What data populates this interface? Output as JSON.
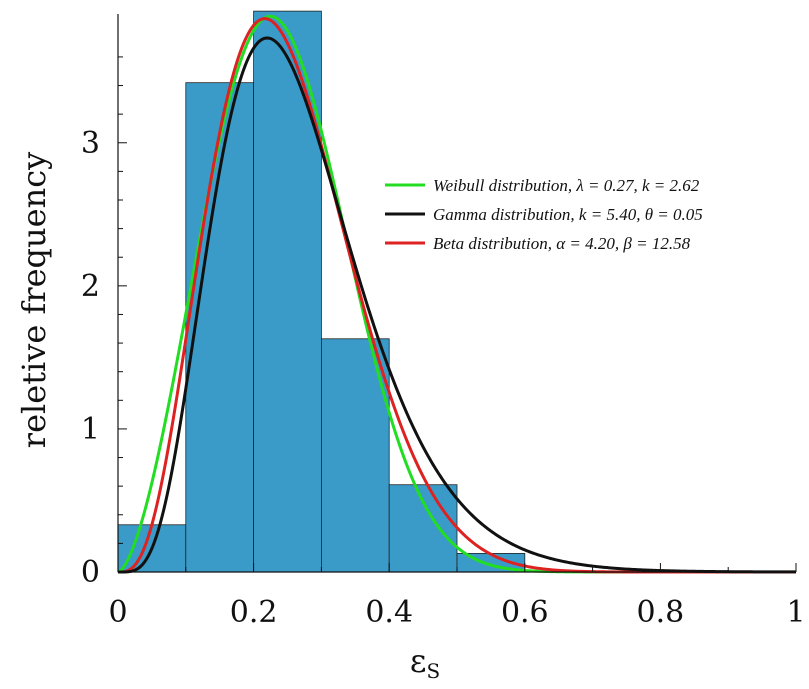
{
  "chart_data": {
    "type": "bar",
    "title": "",
    "xlabel": "ε",
    "xlabel_subscript": "S",
    "ylabel": "reletive frequency",
    "xlim": [
      0,
      1
    ],
    "ylim": [
      0,
      3.9
    ],
    "grid": false,
    "legend_position": "right",
    "x_ticks": [
      {
        "value": 0,
        "label": "0"
      },
      {
        "value": 0.2,
        "label": "0.2"
      },
      {
        "value": 0.4,
        "label": "0.4"
      },
      {
        "value": 0.6,
        "label": "0.6"
      },
      {
        "value": 0.8,
        "label": "0.8"
      },
      {
        "value": 1,
        "label": "1"
      }
    ],
    "y_ticks": [
      {
        "value": 0,
        "label": "0"
      },
      {
        "value": 1,
        "label": "1"
      },
      {
        "value": 2,
        "label": "2"
      },
      {
        "value": 3,
        "label": "3"
      }
    ],
    "histogram": {
      "color": "#3a9bc9",
      "bins": [
        {
          "x0": 0.0,
          "x1": 0.1,
          "value": 0.33
        },
        {
          "x0": 0.1,
          "x1": 0.2,
          "value": 3.42
        },
        {
          "x0": 0.2,
          "x1": 0.3,
          "value": 3.92
        },
        {
          "x0": 0.3,
          "x1": 0.4,
          "value": 1.63
        },
        {
          "x0": 0.4,
          "x1": 0.5,
          "value": 0.61
        },
        {
          "x0": 0.5,
          "x1": 0.6,
          "value": 0.13
        }
      ]
    },
    "series": [
      {
        "name": "Weibull distribution, λ = 0.27, k = 2.62",
        "type": "weibull",
        "color": "#22dd22",
        "params": {
          "lambda": 0.27,
          "k": 2.62
        }
      },
      {
        "name": "Gamma distribution, k = 5.40, θ = 0.05",
        "type": "gamma",
        "color": "#111111",
        "params": {
          "k": 5.4,
          "theta": 0.05
        }
      },
      {
        "name": "Beta distribution, α = 4.20, β = 12.58",
        "type": "beta",
        "color": "#dd2222",
        "params": {
          "alpha": 4.2,
          "beta": 12.58
        }
      }
    ]
  }
}
